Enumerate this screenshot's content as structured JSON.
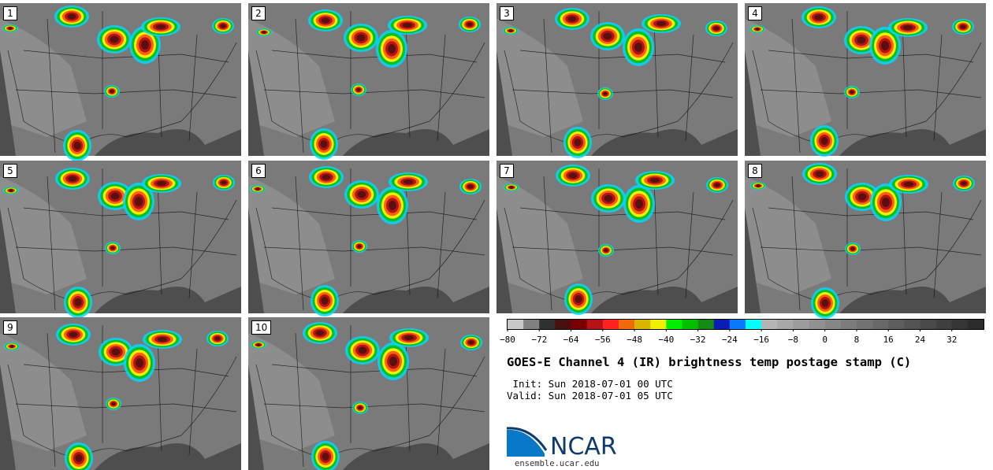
{
  "panels": [
    {
      "label": "1"
    },
    {
      "label": "2"
    },
    {
      "label": "3"
    },
    {
      "label": "4"
    },
    {
      "label": "5"
    },
    {
      "label": "6"
    },
    {
      "label": "7"
    },
    {
      "label": "8"
    },
    {
      "label": "9"
    },
    {
      "label": "10"
    }
  ],
  "colorbar": {
    "colors": [
      "#c8c8c8",
      "#808080",
      "#303030",
      "#4a1010",
      "#7a0000",
      "#b41414",
      "#ff2020",
      "#f06a0a",
      "#d8b400",
      "#f0f000",
      "#00f000",
      "#00c000",
      "#148c14",
      "#0a1eb4",
      "#0a78ff",
      "#00ffff",
      "#b4b4b4",
      "#a8a8a8",
      "#9c9c9c",
      "#909090",
      "#868686",
      "#7c7c7c",
      "#727272",
      "#686868",
      "#5e5e5e",
      "#545454",
      "#4a4a4a",
      "#404040",
      "#363636",
      "#2c2c2c"
    ],
    "tick_labels": [
      "−80",
      "−72",
      "−64",
      "−56",
      "−48",
      "−40",
      "−32",
      "−24",
      "−16",
      "−8",
      "0",
      "8",
      "16",
      "24",
      "32"
    ]
  },
  "title": "GOES-E Channel 4 (IR) brightness temp postage stamp (C)",
  "init_line": " Init: Sun 2018-07-01 00 UTC",
  "valid_line": "Valid: Sun 2018-07-01 05 UTC",
  "logo_text": "NCAR",
  "site": "ensemble.ucar.edu",
  "map_colors": {
    "land_dark": "#5a5a5a",
    "land_mid": "#7a7a7a",
    "land_light": "#9a9a9a",
    "ocean": "#4e4e4e",
    "borders": "#111111"
  }
}
